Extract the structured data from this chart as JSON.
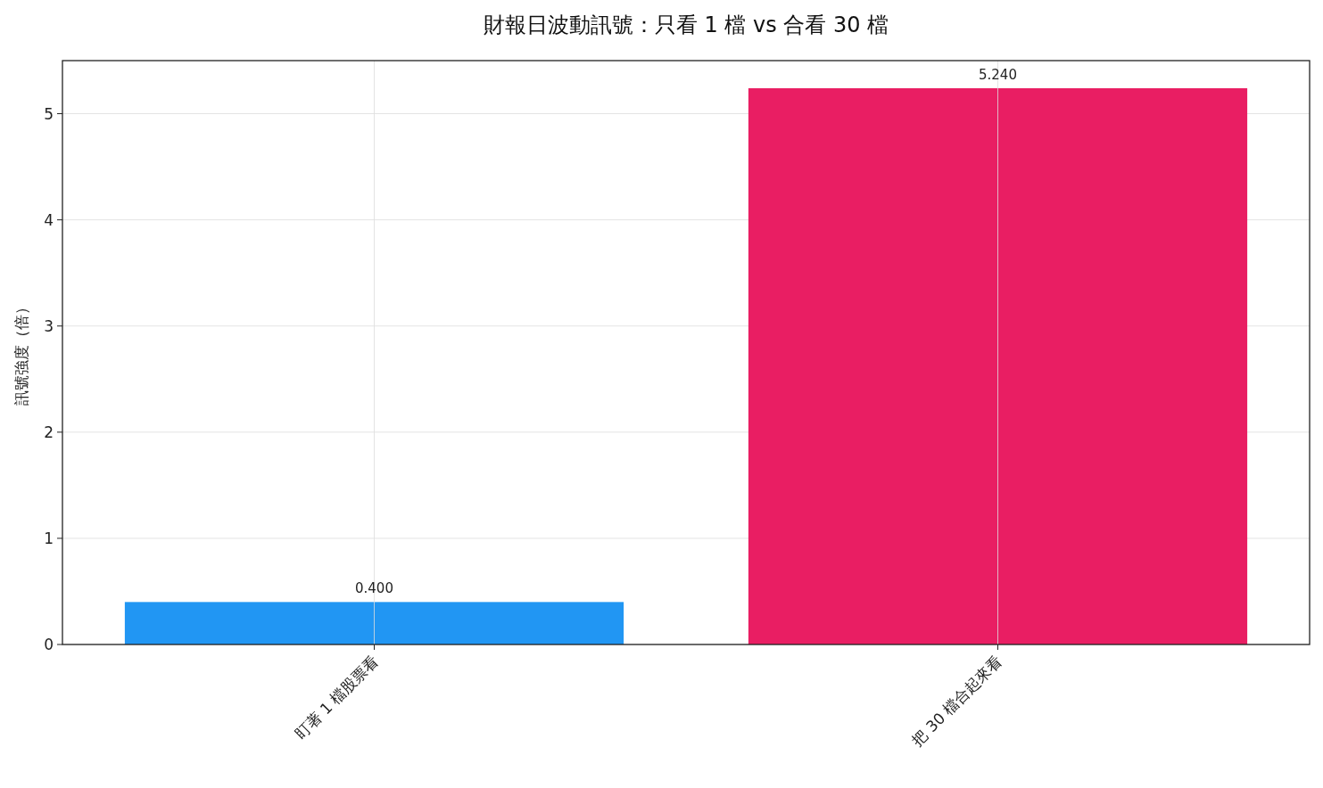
{
  "chart_data": {
    "type": "bar",
    "title": "財報日波動訊號：只看 1 檔 vs 合看 30 檔",
    "ylabel": "訊號強度（倍）",
    "categories": [
      "盯著 1 檔股票看",
      "把 30 檔合起來看"
    ],
    "values": [
      0.4,
      5.24
    ],
    "colors": [
      "#2196f3",
      "#e91e63"
    ],
    "value_labels": [
      "0.400",
      "5.240"
    ],
    "ylim": [
      0,
      5.5
    ],
    "yticks": [
      0,
      1,
      2,
      3,
      4,
      5
    ],
    "grid": true
  }
}
